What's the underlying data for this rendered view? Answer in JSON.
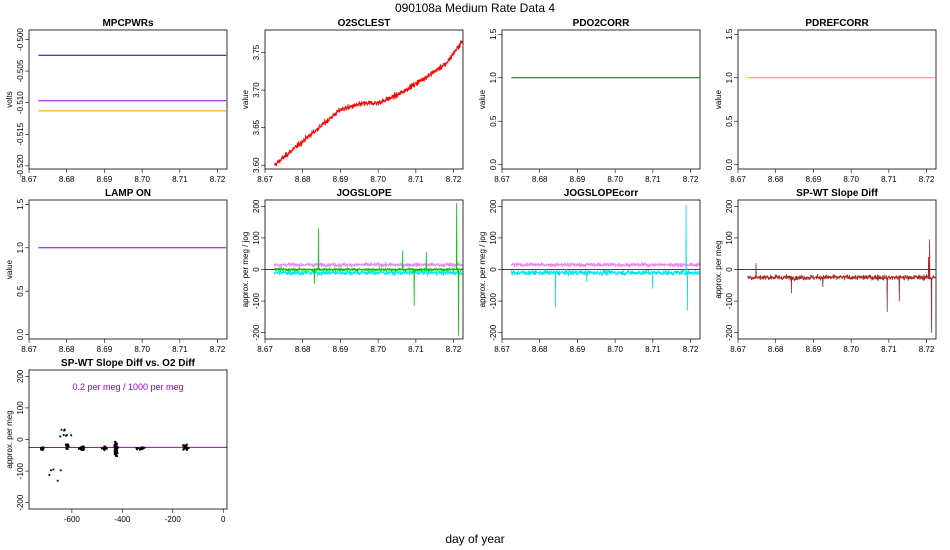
{
  "page": {
    "title": "090108a   Medium Rate Data 4",
    "xlabel": "day of year"
  },
  "colors": {
    "blue": "#0000cc",
    "purple": "#9900cc",
    "orange": "#ff9900",
    "red": "#ff0000",
    "darkgreen": "#006600",
    "green": "#00cc00",
    "cyan": "#00e5ee",
    "violet": "#ee82ee",
    "brown": "#a52a2a",
    "black": "#000000"
  },
  "chart_data": [
    {
      "title": "MPCPWRs",
      "type": "line",
      "ylabel": "volts",
      "xlim": [
        8.67,
        8.7225
      ],
      "ylim": [
        -0.5205,
        -0.4985
      ],
      "xticks": [
        "8.67",
        "8.68",
        "8.69",
        "8.70",
        "8.71",
        "8.72"
      ],
      "yticks": [
        "-0.520",
        "-0.515",
        "-0.510",
        "-0.505",
        "-0.500"
      ],
      "x_range": [
        8.6725,
        8.7223
      ],
      "series": [
        {
          "color": "blue",
          "kind": "const",
          "value": -0.5025
        },
        {
          "color": "purple",
          "kind": "const",
          "value": -0.5097
        },
        {
          "color": "orange",
          "kind": "const",
          "value": -0.5113
        }
      ]
    },
    {
      "title": "O2SCLEST",
      "type": "line",
      "ylabel": "value",
      "xlim": [
        8.67,
        8.7225
      ],
      "ylim": [
        3.595,
        3.78
      ],
      "xticks": [
        "8.67",
        "8.68",
        "8.69",
        "8.70",
        "8.71",
        "8.72"
      ],
      "yticks": [
        "3.60",
        "3.65",
        "3.70",
        "3.75"
      ],
      "x_range": [
        8.6725,
        8.7223
      ],
      "series": [
        {
          "color": "red",
          "kind": "trend",
          "noise": 0.004,
          "points": [
            [
              8.6725,
              3.6
            ],
            [
              8.68,
              3.632
            ],
            [
              8.69,
              3.674
            ],
            [
              8.696,
              3.682
            ],
            [
              8.7,
              3.683
            ],
            [
              8.705,
              3.693
            ],
            [
              8.712,
              3.715
            ],
            [
              8.718,
              3.735
            ],
            [
              8.7223,
              3.765
            ]
          ]
        }
      ]
    },
    {
      "title": "PDO2CORR",
      "type": "line",
      "ylabel": "value",
      "xlim": [
        8.67,
        8.7225
      ],
      "ylim": [
        -0.05,
        1.55
      ],
      "xticks": [
        "8.67",
        "8.68",
        "8.69",
        "8.70",
        "8.71",
        "8.72"
      ],
      "yticks": [
        "0.0",
        "0.5",
        "1.0",
        "1.5"
      ],
      "x_range": [
        8.6725,
        8.7223
      ],
      "series": [
        {
          "color": "darkgreen",
          "kind": "const",
          "value": 1.0
        }
      ]
    },
    {
      "title": "PDREFCORR",
      "type": "line",
      "ylabel": "value",
      "xlim": [
        8.67,
        8.7225
      ],
      "ylim": [
        -0.05,
        1.55
      ],
      "xticks": [
        "8.67",
        "8.68",
        "8.69",
        "8.70",
        "8.71",
        "8.72"
      ],
      "yticks": [
        "0.0",
        "0.5",
        "1.0",
        "1.5"
      ],
      "x_range": [
        8.6725,
        8.7223
      ],
      "series": [
        {
          "color": "orange",
          "kind": "const",
          "value": 1.0
        }
      ]
    },
    {
      "title": "LAMP ON",
      "type": "line",
      "ylabel": "value",
      "xlim": [
        8.67,
        8.7225
      ],
      "ylim": [
        -0.05,
        1.55
      ],
      "xticks": [
        "8.67",
        "8.68",
        "8.69",
        "8.70",
        "8.71",
        "8.72"
      ],
      "yticks": [
        "0.0",
        "0.5",
        "1.0",
        "1.5"
      ],
      "x_range": [
        8.6725,
        8.7223
      ],
      "series": [
        {
          "color": "purple",
          "kind": "const",
          "value": 1.0
        }
      ]
    },
    {
      "title": "JOGSLOPE",
      "type": "line",
      "ylabel": "approx. per meg / jog",
      "xlim": [
        8.67,
        8.7225
      ],
      "ylim": [
        -220,
        220
      ],
      "xticks": [
        "8.67",
        "8.68",
        "8.69",
        "8.70",
        "8.71",
        "8.72"
      ],
      "yticks": [
        "-200",
        "-100",
        "0",
        "100",
        "200"
      ],
      "x_range": [
        8.6725,
        8.7223
      ],
      "series": [
        {
          "color": "violet",
          "kind": "noise",
          "base": 15,
          "noise": 7
        },
        {
          "color": "cyan",
          "kind": "noise",
          "base": -10,
          "noise": 9
        },
        {
          "color": "green",
          "kind": "noise",
          "base": 0,
          "noise": 5,
          "spikes": [
            [
              8.6842,
              130
            ],
            [
              8.6831,
              -45
            ],
            [
              8.7065,
              60
            ],
            [
              8.7096,
              -115
            ],
            [
              8.7128,
              55
            ],
            [
              8.7208,
              210
            ],
            [
              8.7213,
              -210
            ]
          ]
        }
      ],
      "hline": 0
    },
    {
      "title": "JOGSLOPEcorr",
      "type": "line",
      "ylabel": "approx. per meg / jog",
      "xlim": [
        8.67,
        8.7225
      ],
      "ylim": [
        -220,
        220
      ],
      "xticks": [
        "8.67",
        "8.68",
        "8.69",
        "8.70",
        "8.71",
        "8.72"
      ],
      "yticks": [
        "-200",
        "-100",
        "0",
        "100",
        "200"
      ],
      "x_range": [
        8.6725,
        8.7223
      ],
      "series": [
        {
          "color": "violet",
          "kind": "noise",
          "base": 15,
          "noise": 7
        },
        {
          "color": "cyan",
          "kind": "noise",
          "base": -10,
          "noise": 9,
          "spikes": [
            [
              8.6842,
              -120
            ],
            [
              8.6925,
              -40
            ],
            [
              8.7099,
              -60
            ],
            [
              8.7188,
              205
            ],
            [
              8.7192,
              -130
            ]
          ]
        }
      ],
      "hline": 0
    },
    {
      "title": "SP-WT Slope Diff",
      "type": "line",
      "ylabel": "approx. per meg",
      "xlim": [
        8.67,
        8.7225
      ],
      "ylim": [
        -220,
        220
      ],
      "xticks": [
        "8.67",
        "8.68",
        "8.69",
        "8.70",
        "8.71",
        "8.72"
      ],
      "yticks": [
        "-200",
        "-100",
        "0",
        "100",
        "200"
      ],
      "x_range": [
        8.6725,
        8.7223
      ],
      "series": [
        {
          "color": "brown",
          "kind": "noise",
          "base": -25,
          "noise": 9,
          "spikes": [
            [
              8.6748,
              20
            ],
            [
              8.6842,
              -75
            ],
            [
              8.6925,
              -55
            ],
            [
              8.7096,
              -135
            ],
            [
              8.7128,
              -100
            ],
            [
              8.7208,
              95
            ],
            [
              8.7213,
              -200
            ],
            [
              8.7205,
              40
            ]
          ]
        }
      ],
      "hline": 0
    },
    {
      "title": "SP-WT Slope Diff vs. O2 Diff",
      "type": "scatter",
      "ylabel": "approx. per meg",
      "xlim": [
        -770,
        15
      ],
      "ylim": [
        -220,
        220
      ],
      "xticks": [
        "-600",
        "-400",
        "-200",
        "0"
      ],
      "xtick_values": [
        -600,
        -400,
        -200,
        0
      ],
      "yticks": [
        "-200",
        "-100",
        "0",
        "100",
        "200"
      ],
      "annotation": "0.2 per meg / 1000 per meg",
      "fit_line": {
        "color": "purple",
        "slope": 0.0002,
        "intercept": -25
      },
      "clusters": [
        {
          "x": -717,
          "y": -28,
          "sx": 6,
          "sy": 5,
          "n": 40
        },
        {
          "x": -618,
          "y": -22,
          "sx": 8,
          "sy": 7,
          "n": 20
        },
        {
          "x": -560,
          "y": -28,
          "sx": 12,
          "sy": 6,
          "n": 25
        },
        {
          "x": -470,
          "y": -28,
          "sx": 10,
          "sy": 6,
          "n": 25
        },
        {
          "x": -425,
          "y": -30,
          "sx": 6,
          "sy": 20,
          "n": 120
        },
        {
          "x": -330,
          "y": -28,
          "sx": 20,
          "sy": 6,
          "n": 15
        },
        {
          "x": -150,
          "y": -25,
          "sx": 10,
          "sy": 8,
          "n": 40
        },
        {
          "x": -640,
          "y": 25,
          "sx": 40,
          "sy": 30,
          "n": 8
        },
        {
          "x": -660,
          "y": -100,
          "sx": 30,
          "sy": 30,
          "n": 5
        }
      ]
    }
  ]
}
